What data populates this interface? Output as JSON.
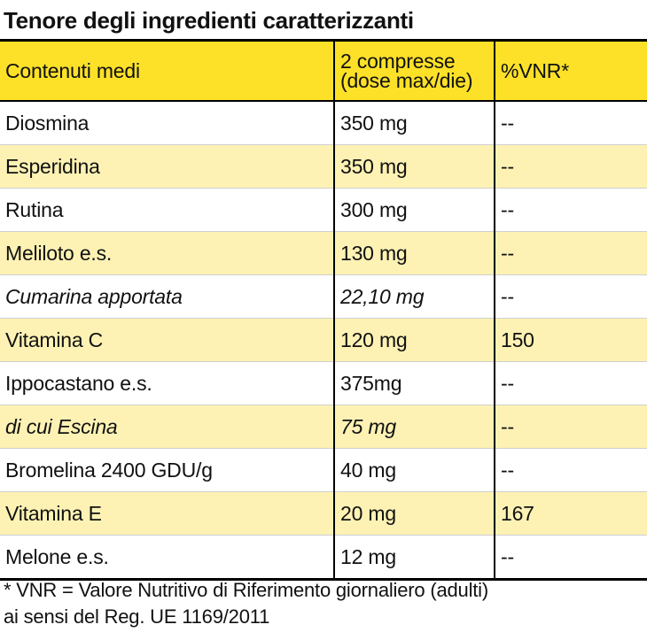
{
  "title": "Tenore degli ingredienti caratterizzanti",
  "table": {
    "headers": {
      "col1": "Contenuti medi",
      "col2_line1": "2 compresse",
      "col2_line2": "(dose max/die)",
      "col3": "%VNR*"
    },
    "rows": [
      {
        "name": "Diosmina",
        "amount": "350 mg",
        "vnr": "--"
      },
      {
        "name": "Esperidina",
        "amount": "350 mg",
        "vnr": "--"
      },
      {
        "name": "Rutina",
        "amount": "300 mg",
        "vnr": "--"
      },
      {
        "name": "Meliloto e.s.",
        "amount": "130 mg",
        "vnr": "--"
      },
      {
        "name": "Cumarina apportata",
        "amount": "22,10 mg",
        "vnr": "--"
      },
      {
        "name": "Vitamina C",
        "amount": "120 mg",
        "vnr": "150"
      },
      {
        "name": "Ippocastano e.s.",
        "amount": "375mg",
        "vnr": "--"
      },
      {
        "name": "di cui Escina",
        "amount": "75 mg",
        "vnr": "--"
      },
      {
        "name": "Bromelina 2400 GDU/g",
        "amount": "40 mg",
        "vnr": "--"
      },
      {
        "name": "Vitamina E",
        "amount": "20 mg",
        "vnr": "167"
      },
      {
        "name": "Melone e.s.",
        "amount": "12 mg",
        "vnr": "--"
      }
    ]
  },
  "footnote": {
    "line1": "* VNR = Valore Nutritivo di Riferimento giornaliero (adulti)",
    "line2": "ai sensi del Reg. UE 1169/2011"
  },
  "colors": {
    "header_yellow": "#fde128",
    "stripe_yellow": "#fdf2b4",
    "rule": "#000000"
  }
}
